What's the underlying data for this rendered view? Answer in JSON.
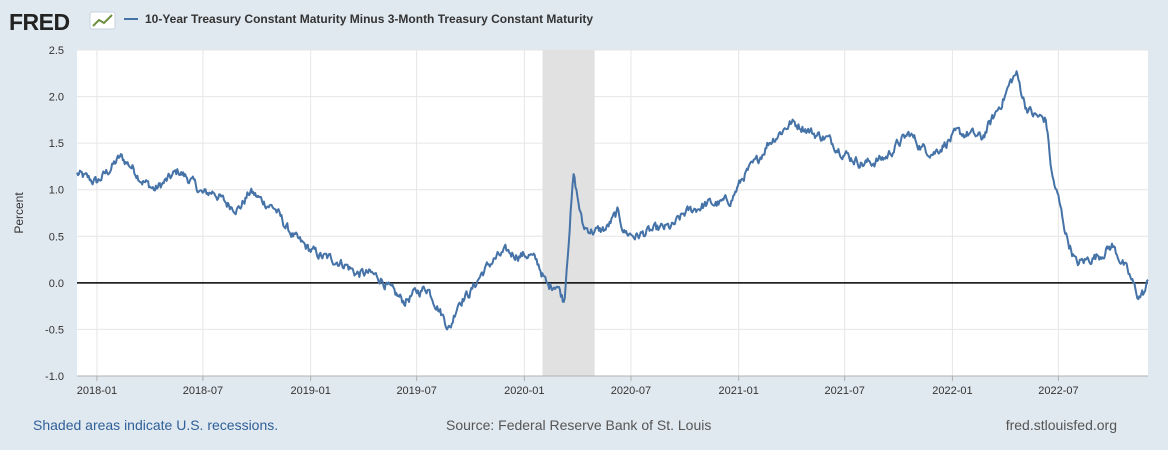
{
  "brand": {
    "logo": "FRED"
  },
  "legend": {
    "series_label": "10-Year Treasury Constant Maturity Minus 3-Month Treasury Constant Maturity"
  },
  "footer": {
    "recession_note": "Shaded areas indicate U.S. recessions.",
    "source": "Source: Federal Reserve Bank of St. Louis",
    "site": "fred.stlouisfed.org"
  },
  "colors": {
    "background": "#e1e9f0",
    "series": "#4572a7",
    "recession": "#e1e1e1",
    "zero_line": "#000000"
  },
  "chart_data": {
    "type": "line",
    "title": "",
    "xlabel": "",
    "ylabel": "Percent",
    "xlim": [
      "2017-11-28",
      "2022-12-01"
    ],
    "ylim": [
      -1.0,
      2.5
    ],
    "y_ticks": [
      -1.0,
      -0.5,
      0.0,
      0.5,
      1.0,
      1.5,
      2.0,
      2.5
    ],
    "y_tick_labels": [
      "-1.0",
      "-0.5",
      "0.0",
      "0.5",
      "1.0",
      "1.5",
      "2.0",
      "2.5"
    ],
    "x_ticks": [
      "2018-01-01",
      "2018-07-01",
      "2019-01-01",
      "2019-07-01",
      "2020-01-01",
      "2020-07-01",
      "2021-01-01",
      "2021-07-01",
      "2022-01-01",
      "2022-07-01"
    ],
    "x_tick_labels": [
      "2018-01",
      "2018-07",
      "2019-01",
      "2019-07",
      "2020-01",
      "2020-07",
      "2021-01",
      "2021-07",
      "2022-01",
      "2022-07"
    ],
    "grid": true,
    "legend_position": "top",
    "recessions": [
      {
        "start": "2020-02-01",
        "end": "2020-04-30"
      }
    ],
    "reference_line": 0.0,
    "series": [
      {
        "name": "10-Year Treasury Constant Maturity Minus 3-Month Treasury Constant Maturity",
        "x": [
          "2017-11-28",
          "2017-12-15",
          "2018-01-01",
          "2018-01-20",
          "2018-02-10",
          "2018-03-01",
          "2018-03-20",
          "2018-04-10",
          "2018-05-01",
          "2018-05-20",
          "2018-06-10",
          "2018-07-01",
          "2018-07-20",
          "2018-08-10",
          "2018-09-01",
          "2018-09-20",
          "2018-10-10",
          "2018-11-01",
          "2018-11-20",
          "2018-12-10",
          "2019-01-01",
          "2019-01-20",
          "2019-02-10",
          "2019-03-01",
          "2019-03-20",
          "2019-04-10",
          "2019-05-01",
          "2019-05-20",
          "2019-06-10",
          "2019-07-01",
          "2019-07-20",
          "2019-08-10",
          "2019-08-27",
          "2019-09-10",
          "2019-10-01",
          "2019-10-20",
          "2019-11-10",
          "2019-12-01",
          "2019-12-20",
          "2020-01-10",
          "2020-01-25",
          "2020-02-10",
          "2020-02-25",
          "2020-03-09",
          "2020-03-18",
          "2020-03-25",
          "2020-04-10",
          "2020-05-01",
          "2020-05-20",
          "2020-06-08",
          "2020-06-20",
          "2020-07-10",
          "2020-08-01",
          "2020-08-20",
          "2020-09-10",
          "2020-10-01",
          "2020-10-20",
          "2020-11-10",
          "2020-12-01",
          "2020-12-20",
          "2021-01-10",
          "2021-02-01",
          "2021-02-20",
          "2021-03-10",
          "2021-03-31",
          "2021-04-20",
          "2021-05-10",
          "2021-06-01",
          "2021-06-20",
          "2021-07-10",
          "2021-08-01",
          "2021-08-20",
          "2021-09-10",
          "2021-10-01",
          "2021-10-20",
          "2021-11-10",
          "2021-12-01",
          "2021-12-20",
          "2022-01-10",
          "2022-02-01",
          "2022-02-20",
          "2022-03-10",
          "2022-03-31",
          "2022-04-10",
          "2022-04-20",
          "2022-05-06",
          "2022-05-20",
          "2022-06-10",
          "2022-06-20",
          "2022-07-01",
          "2022-07-15",
          "2022-08-01",
          "2022-08-20",
          "2022-09-10",
          "2022-10-01",
          "2022-10-20",
          "2022-11-01",
          "2022-11-15",
          "2022-11-25",
          "2022-12-01"
        ],
        "values": [
          1.17,
          1.12,
          1.08,
          1.2,
          1.35,
          1.25,
          1.1,
          1.0,
          1.1,
          1.2,
          1.1,
          0.95,
          0.98,
          0.85,
          0.8,
          0.98,
          0.88,
          0.8,
          0.6,
          0.45,
          0.35,
          0.28,
          0.25,
          0.2,
          0.1,
          0.1,
          0.05,
          -0.1,
          -0.2,
          -0.1,
          -0.05,
          -0.3,
          -0.5,
          -0.2,
          -0.1,
          0.1,
          0.25,
          0.33,
          0.3,
          0.3,
          0.2,
          -0.05,
          0.0,
          -0.2,
          0.6,
          1.15,
          0.6,
          0.55,
          0.58,
          0.75,
          0.55,
          0.5,
          0.55,
          0.58,
          0.6,
          0.75,
          0.8,
          0.85,
          0.85,
          0.9,
          1.15,
          1.3,
          1.5,
          1.6,
          1.72,
          1.68,
          1.6,
          1.55,
          1.45,
          1.35,
          1.28,
          1.3,
          1.35,
          1.5,
          1.6,
          1.45,
          1.4,
          1.5,
          1.6,
          1.6,
          1.55,
          1.75,
          2.0,
          2.15,
          2.25,
          1.9,
          1.8,
          1.75,
          1.15,
          0.9,
          0.5,
          0.2,
          0.25,
          0.3,
          0.4,
          0.2,
          0.05,
          -0.15,
          -0.1,
          0.0
        ]
      }
    ]
  }
}
